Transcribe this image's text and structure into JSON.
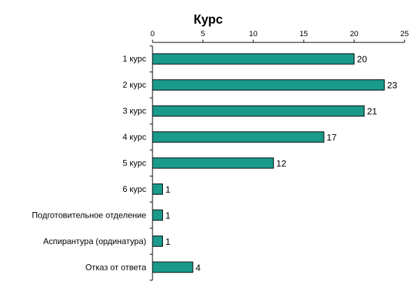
{
  "chart_data": {
    "type": "bar",
    "orientation": "horizontal",
    "title": "Курс",
    "xlabel": "",
    "ylabel": "",
    "xlim": [
      0,
      25
    ],
    "xticks": [
      "0",
      "5",
      "10",
      "15",
      "20",
      "25"
    ],
    "axis_position": "top",
    "grid": false,
    "bar_color": "#1a9a8a",
    "categories": [
      "1 курс",
      "2 курс",
      "3 курс",
      "4 курс",
      "5 курс",
      "6 курс",
      "Подготовительное отделение",
      "Аспирантура (ординатура)",
      "Отказ от ответа"
    ],
    "values": [
      20,
      23,
      21,
      17,
      12,
      1,
      1,
      1,
      4
    ],
    "data_labels": [
      "20",
      "23",
      "21",
      "17",
      "12",
      "1",
      "1",
      "1",
      "4"
    ]
  }
}
